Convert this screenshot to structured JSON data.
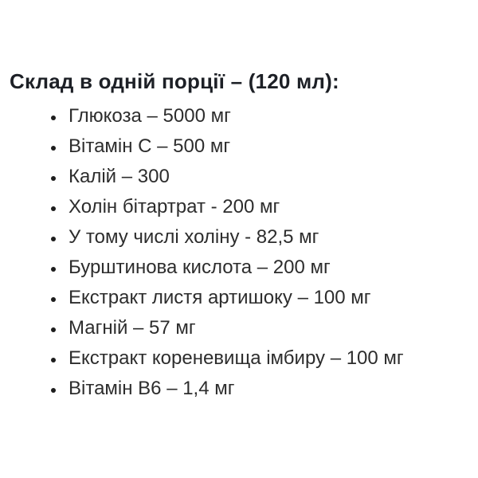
{
  "page": {
    "heading": "Склад в одній порції – (120 мл):",
    "items": [
      "Глюкоза – 5000 мг",
      "Вітамін С – 500 мг",
      "Калій – 300",
      "Холін бітартрат - 200 мг",
      "У тому числі холіну - 82,5 мг",
      "Бурштинова кислота – 200 мг",
      "Екстракт листя артишоку – 100 мг",
      "Магній – 57 мг",
      "Екстракт кореневища імбиру – 100 мг",
      "Вітамін В6 – 1,4 мг"
    ],
    "colors": {
      "background": "#ffffff",
      "heading_text": "#1d2026",
      "body_text": "#2d2d2d"
    }
  }
}
